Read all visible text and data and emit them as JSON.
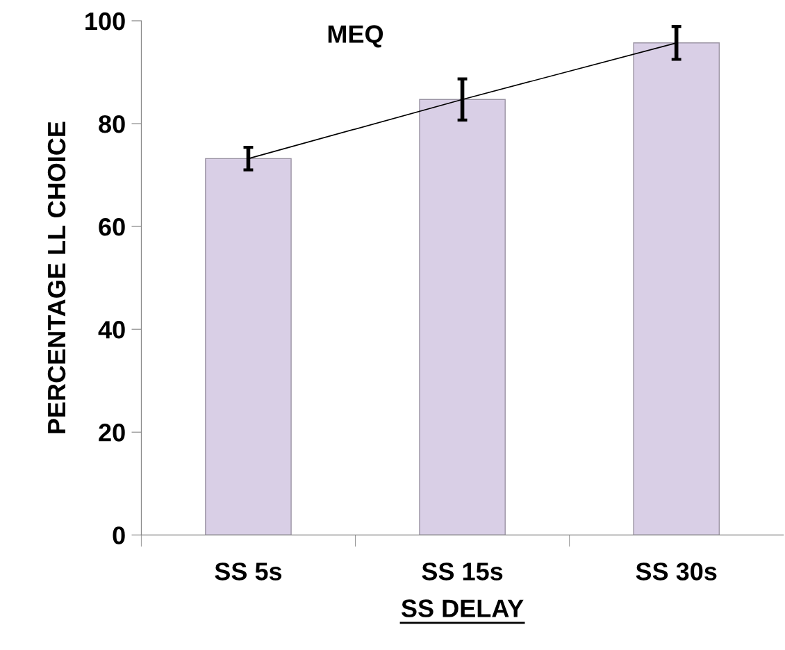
{
  "chart_data": {
    "type": "bar",
    "categories": [
      "SS 5s",
      "SS 15s",
      "SS 30s"
    ],
    "series": [
      {
        "color": "#d9cfe6",
        "values": [
          73.2,
          84.7,
          95.7
        ],
        "errors": [
          2.2,
          4,
          3.2
        ]
      },
      {
        "type": "line",
        "color": "#000000",
        "values": [
          73.2,
          84.7,
          95.7
        ]
      }
    ],
    "xlabel": "SS DELAY",
    "ylabel": "PERCENTAGE LL CHOICE",
    "annotations": [
      "MEQ"
    ],
    "ylim": [
      0,
      100
    ],
    "yticks": [
      0,
      20,
      40,
      60,
      80,
      100
    ],
    "grid": false,
    "legend": false,
    "marker": "none",
    "line_style": "solid"
  }
}
